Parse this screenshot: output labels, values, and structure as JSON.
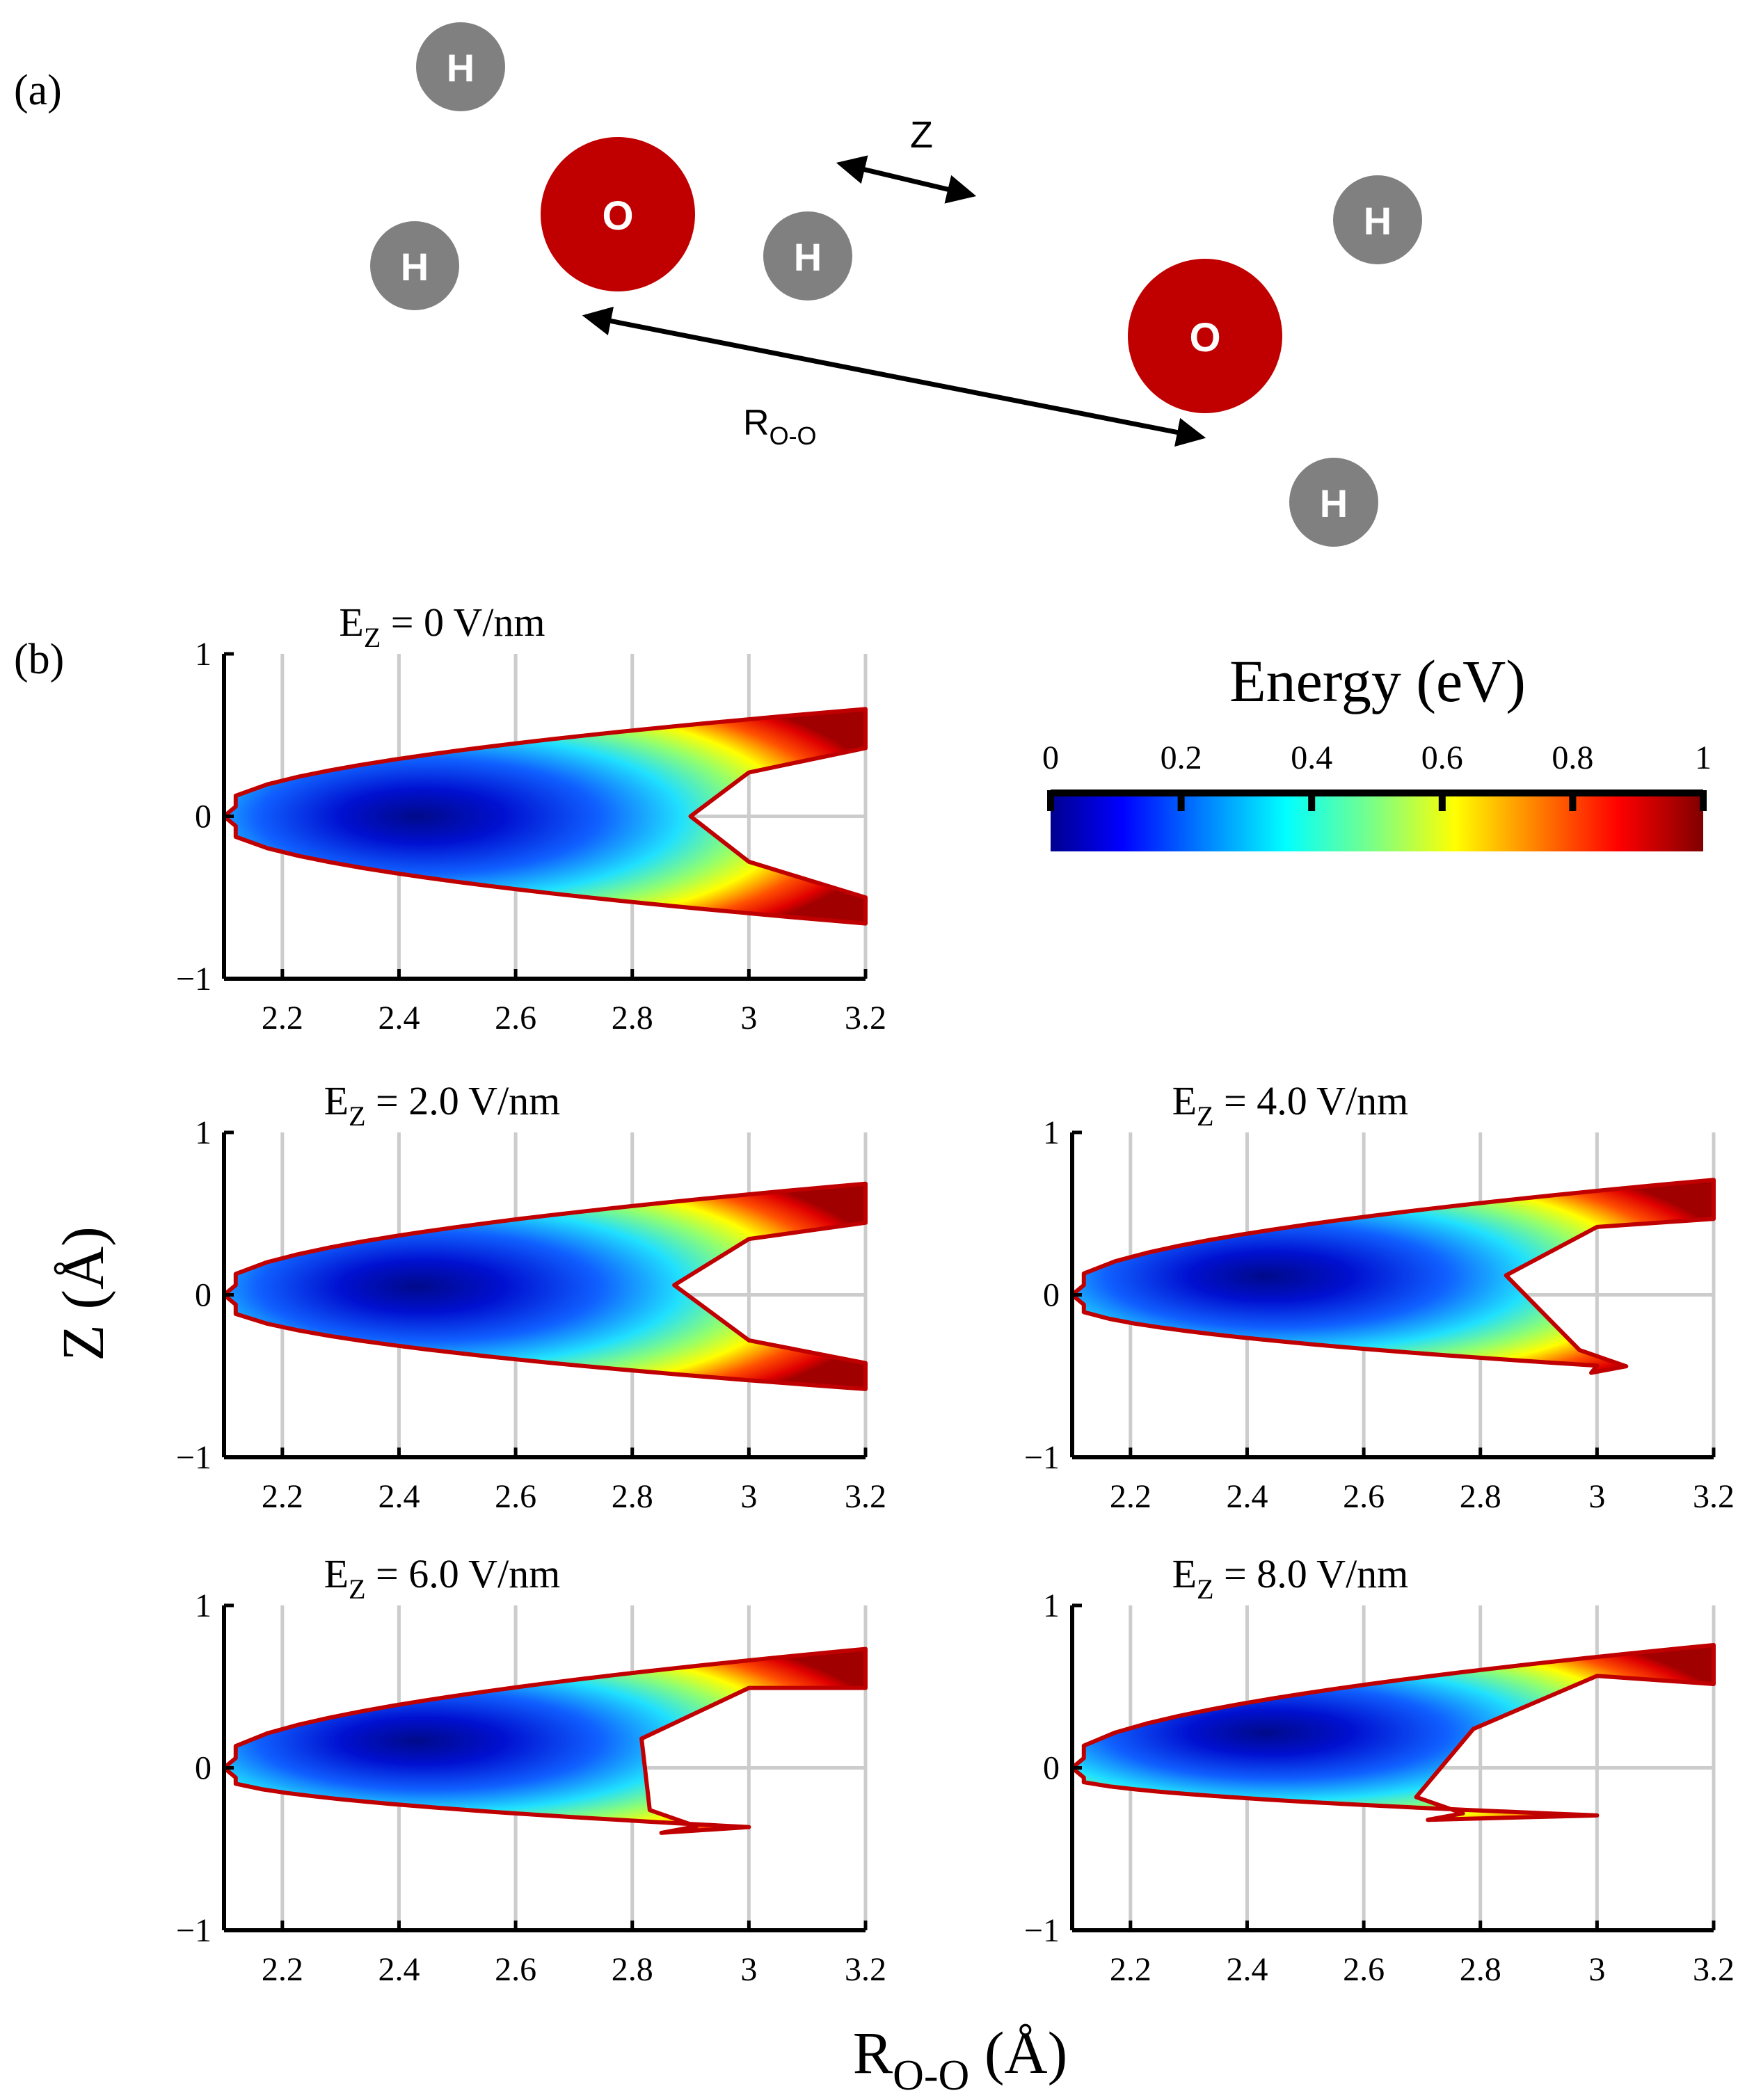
{
  "panel_a": {
    "label": "(a)",
    "atoms": [
      {
        "element": "H",
        "label": "H"
      },
      {
        "element": "O",
        "label": "O"
      },
      {
        "element": "H",
        "label": "H"
      },
      {
        "element": "H",
        "label": "H"
      },
      {
        "element": "H",
        "label": "H"
      },
      {
        "element": "O",
        "label": "O"
      },
      {
        "element": "H",
        "label": "H"
      }
    ],
    "z_label": "Z",
    "roo_label_main": "R",
    "roo_label_sub": "O-O",
    "colors": {
      "oxygen": "#c00000",
      "hydrogen": "#808080",
      "atom_text": "#ffffff",
      "arrow": "#000000"
    }
  },
  "panel_b": {
    "label": "(b)",
    "y_axis_label": "Z (Å)",
    "x_axis_label_main": "R",
    "x_axis_label_sub": "O-O",
    "x_axis_label_tail": " (Å)"
  },
  "colorbar": {
    "title": "Energy (eV)",
    "ticks": [
      "0",
      "0.2",
      "0.4",
      "0.6",
      "0.8",
      "1"
    ],
    "range": [
      0,
      1
    ],
    "colormap": "jet"
  },
  "chart_data": [
    {
      "type": "heatmap",
      "title_main": "E",
      "title_sub": "Z",
      "title_rest": " = 0 V/nm",
      "field_V_per_nm": 0,
      "x_ticks": [
        "2.2",
        "2.4",
        "2.6",
        "2.8",
        "3",
        "3.2"
      ],
      "y_ticks": [
        "1",
        "0",
        "−1"
      ],
      "xlim": [
        2.1,
        3.2
      ],
      "ylim": [
        -1,
        1
      ],
      "cmap": "jet",
      "color_range_eV": [
        0,
        1
      ]
    },
    {
      "type": "heatmap",
      "title_main": "E",
      "title_sub": "Z",
      "title_rest": " = 2.0 V/nm",
      "field_V_per_nm": 2.0,
      "x_ticks": [
        "2.2",
        "2.4",
        "2.6",
        "2.8",
        "3",
        "3.2"
      ],
      "y_ticks": [
        "1",
        "0",
        "−1"
      ],
      "xlim": [
        2.1,
        3.2
      ],
      "ylim": [
        -1,
        1
      ],
      "cmap": "jet",
      "color_range_eV": [
        0,
        1
      ]
    },
    {
      "type": "heatmap",
      "title_main": "E",
      "title_sub": "Z",
      "title_rest": " = 4.0 V/nm",
      "field_V_per_nm": 4.0,
      "x_ticks": [
        "2.2",
        "2.4",
        "2.6",
        "2.8",
        "3",
        "3.2"
      ],
      "y_ticks": [
        "1",
        "0",
        "−1"
      ],
      "xlim": [
        2.1,
        3.2
      ],
      "ylim": [
        -1,
        1
      ],
      "cmap": "jet",
      "color_range_eV": [
        0,
        1
      ]
    },
    {
      "type": "heatmap",
      "title_main": "E",
      "title_sub": "Z",
      "title_rest": " = 6.0 V/nm",
      "field_V_per_nm": 6.0,
      "x_ticks": [
        "2.2",
        "2.4",
        "2.6",
        "2.8",
        "3",
        "3.2"
      ],
      "y_ticks": [
        "1",
        "0",
        "−1"
      ],
      "xlim": [
        2.1,
        3.2
      ],
      "ylim": [
        -1,
        1
      ],
      "cmap": "jet",
      "color_range_eV": [
        0,
        1
      ]
    },
    {
      "type": "heatmap",
      "title_main": "E",
      "title_sub": "Z",
      "title_rest": " = 8.0 V/nm",
      "field_V_per_nm": 8.0,
      "x_ticks": [
        "2.2",
        "2.4",
        "2.6",
        "2.8",
        "3",
        "3.2"
      ],
      "y_ticks": [
        "1",
        "0",
        "−1"
      ],
      "xlim": [
        2.1,
        3.2
      ],
      "ylim": [
        -1,
        1
      ],
      "cmap": "jet",
      "color_range_eV": [
        0,
        1
      ]
    }
  ]
}
